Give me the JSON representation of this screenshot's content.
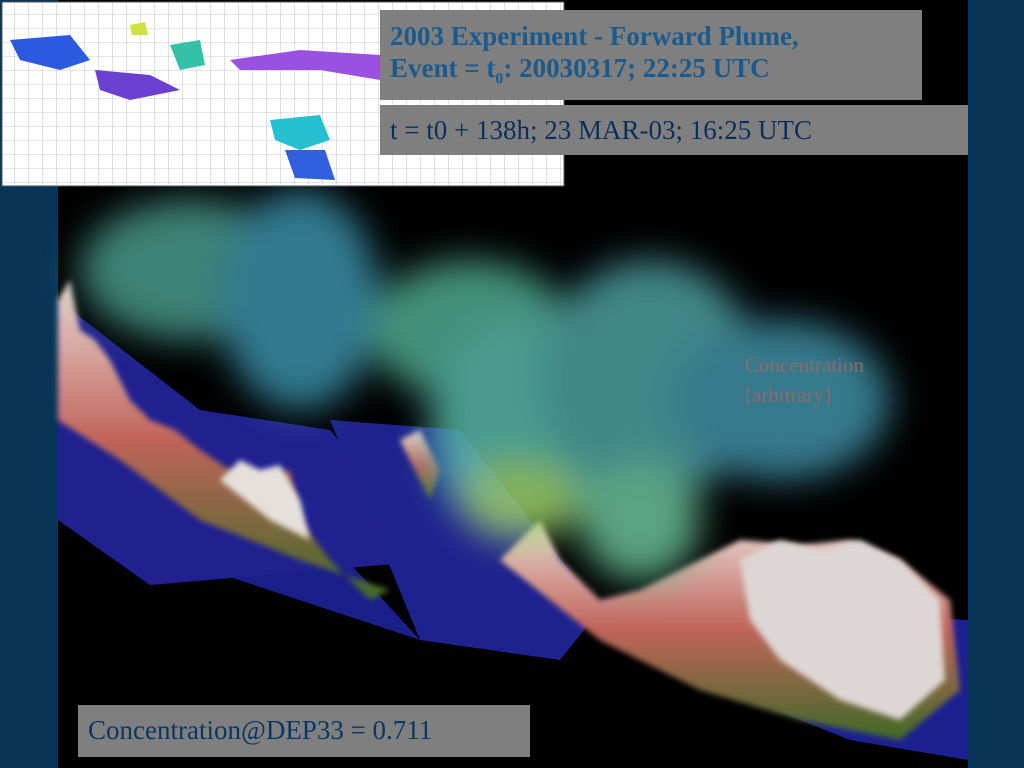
{
  "title": {
    "line1": "2003 Experiment - Forward Plume,",
    "line2_start": "Event = t",
    "line2_subscript": "0",
    "line2_end": ": 20030317; 22:25 UTC"
  },
  "time": "t = t0 + 138h; 23 MAR-03; 16:25 UTC",
  "legend": {
    "line1": "Concentration",
    "line2": "[arbitrary]"
  },
  "readout": "Concentration@DEP33 = 0.711"
}
